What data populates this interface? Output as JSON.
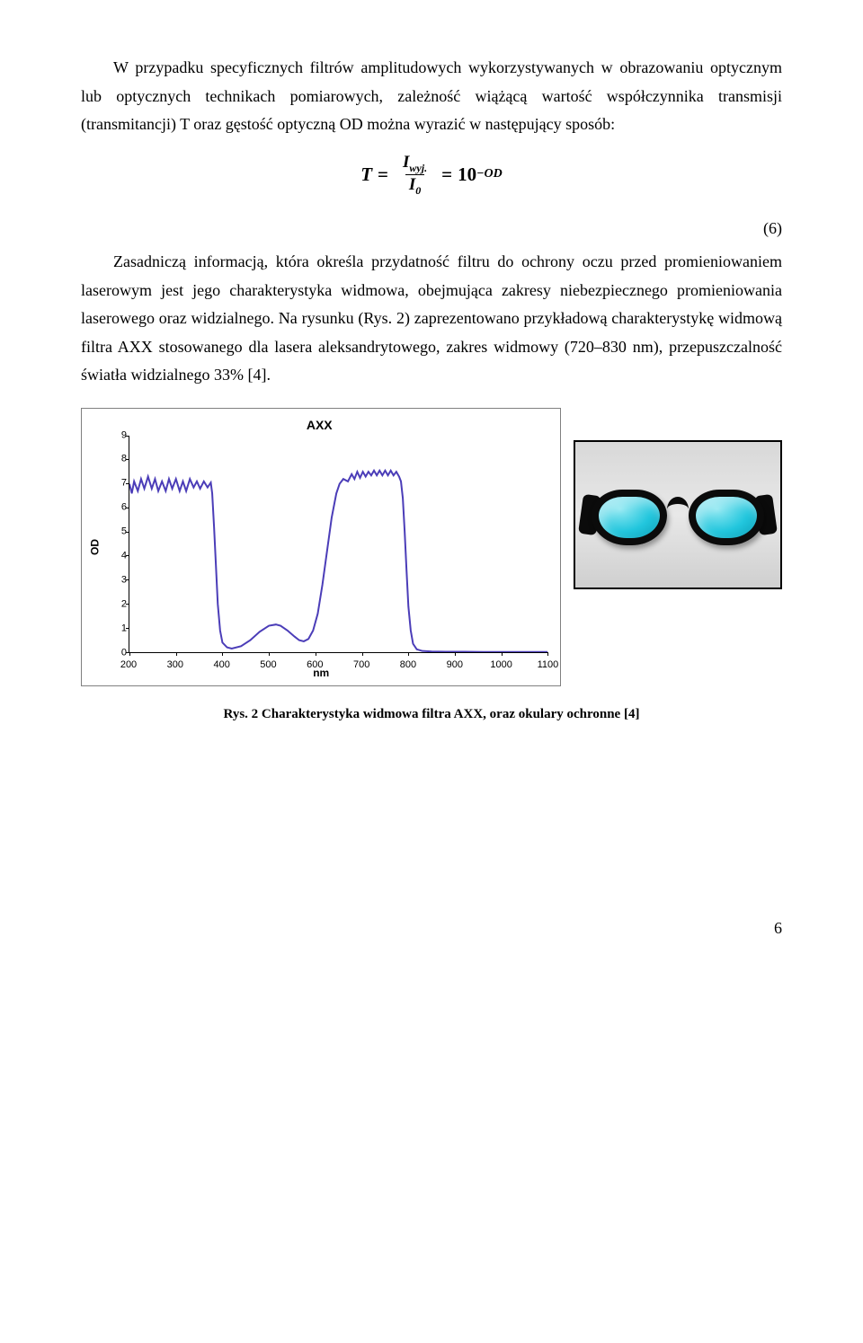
{
  "paragraph1": "W przypadku specyficznych filtrów amplitudowych wykorzystywanych w obrazowaniu optycznym lub optycznych technikach pomiarowych, zależność wiążącą wartość współczynnika transmisji (transmitancji) T oraz gęstość optyczną OD można wyrazić w następujący sposób:",
  "formula": {
    "lhs": "T",
    "eq1": "=",
    "num": "I",
    "num_sub": "wyj.",
    "den": "I",
    "den_sub": "0",
    "eq2": "=",
    "base": "10",
    "exp": "−OD"
  },
  "eq_number": "(6)",
  "paragraph2": "Zasadniczą informacją, która określa przydatność filtru do ochrony oczu przed promieniowaniem laserowym jest jego charakterystyka widmowa, obejmująca zakresy niebezpiecznego promieniowania laserowego oraz widzialnego. Na rysunku (Rys. 2) zaprezentowano przykładową charakterystykę widmową filtra AXX stosowanego dla lasera aleksandrytowego, zakres widmowy (720–830 nm), przepuszczalność światła widzialnego 33% [4].",
  "chart": {
    "title": "AXX",
    "ylabel": "OD",
    "xlabel": "nm",
    "xlim": [
      200,
      1100
    ],
    "ylim": [
      0,
      9
    ],
    "xticks": [
      200,
      300,
      400,
      500,
      600,
      700,
      800,
      900,
      1000,
      1100
    ],
    "yticks": [
      0,
      1,
      2,
      3,
      4,
      5,
      6,
      7,
      8,
      9
    ],
    "line_color": "#4b3db8",
    "line_width": 2,
    "background_color": "#ffffff",
    "series": [
      [
        200,
        7.0
      ],
      [
        205,
        6.6
      ],
      [
        210,
        7.1
      ],
      [
        218,
        6.7
      ],
      [
        225,
        7.2
      ],
      [
        232,
        6.8
      ],
      [
        240,
        7.3
      ],
      [
        248,
        6.8
      ],
      [
        255,
        7.2
      ],
      [
        262,
        6.7
      ],
      [
        270,
        7.1
      ],
      [
        278,
        6.7
      ],
      [
        285,
        7.2
      ],
      [
        292,
        6.8
      ],
      [
        300,
        7.2
      ],
      [
        308,
        6.7
      ],
      [
        315,
        7.1
      ],
      [
        322,
        6.7
      ],
      [
        330,
        7.2
      ],
      [
        338,
        6.85
      ],
      [
        345,
        7.1
      ],
      [
        352,
        6.8
      ],
      [
        360,
        7.1
      ],
      [
        368,
        6.85
      ],
      [
        375,
        7.05
      ],
      [
        378,
        6.6
      ],
      [
        382,
        5.2
      ],
      [
        386,
        3.6
      ],
      [
        390,
        2.0
      ],
      [
        395,
        0.9
      ],
      [
        400,
        0.4
      ],
      [
        410,
        0.2
      ],
      [
        420,
        0.15
      ],
      [
        440,
        0.25
      ],
      [
        460,
        0.5
      ],
      [
        480,
        0.85
      ],
      [
        500,
        1.1
      ],
      [
        515,
        1.15
      ],
      [
        525,
        1.1
      ],
      [
        540,
        0.9
      ],
      [
        555,
        0.65
      ],
      [
        565,
        0.5
      ],
      [
        575,
        0.45
      ],
      [
        585,
        0.55
      ],
      [
        595,
        0.9
      ],
      [
        605,
        1.6
      ],
      [
        615,
        2.8
      ],
      [
        625,
        4.2
      ],
      [
        635,
        5.6
      ],
      [
        645,
        6.6
      ],
      [
        652,
        7.0
      ],
      [
        660,
        7.2
      ],
      [
        670,
        7.1
      ],
      [
        678,
        7.4
      ],
      [
        684,
        7.2
      ],
      [
        690,
        7.5
      ],
      [
        696,
        7.25
      ],
      [
        702,
        7.5
      ],
      [
        708,
        7.3
      ],
      [
        714,
        7.5
      ],
      [
        720,
        7.35
      ],
      [
        726,
        7.55
      ],
      [
        732,
        7.35
      ],
      [
        738,
        7.55
      ],
      [
        744,
        7.35
      ],
      [
        750,
        7.55
      ],
      [
        756,
        7.35
      ],
      [
        762,
        7.55
      ],
      [
        768,
        7.35
      ],
      [
        774,
        7.5
      ],
      [
        780,
        7.3
      ],
      [
        784,
        7.1
      ],
      [
        788,
        6.4
      ],
      [
        792,
        5.0
      ],
      [
        796,
        3.4
      ],
      [
        800,
        1.9
      ],
      [
        805,
        0.9
      ],
      [
        810,
        0.35
      ],
      [
        818,
        0.12
      ],
      [
        830,
        0.05
      ],
      [
        850,
        0.03
      ],
      [
        880,
        0.02
      ],
      [
        920,
        0.02
      ],
      [
        960,
        0.01
      ],
      [
        1000,
        0.01
      ],
      [
        1050,
        0.01
      ],
      [
        1100,
        0.01
      ]
    ]
  },
  "caption": "Rys. 2 Charakterystyka widmowa filtra AXX, oraz okulary ochronne [4]",
  "page_number": "6"
}
